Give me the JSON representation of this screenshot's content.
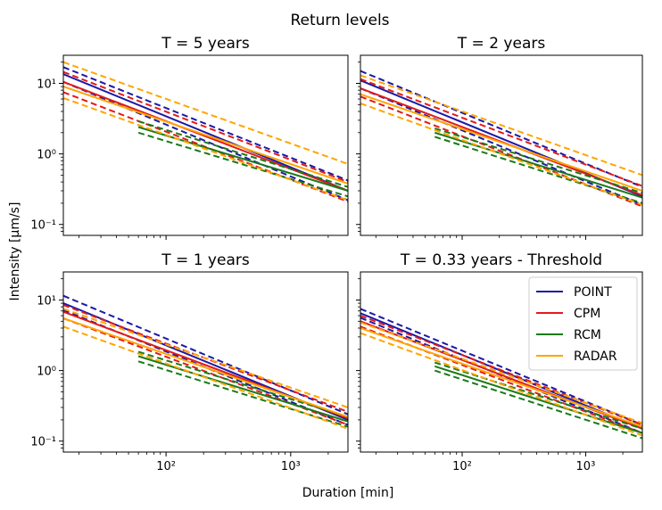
{
  "figure": {
    "suptitle": "Return levels",
    "xlabel": "Duration [min]",
    "ylabel": "Intensity [μm/s]"
  },
  "legend": {
    "placement": "top-right of bottom-right panel",
    "entries": [
      {
        "name": "POINT",
        "color": "#1a1aa6"
      },
      {
        "name": "CPM",
        "color": "#e31a1c"
      },
      {
        "name": "RCM",
        "color": "#1a7a1a"
      },
      {
        "name": "RADAR",
        "color": "#ffa500"
      }
    ]
  },
  "chart_data": [
    {
      "type": "line",
      "title": "T = 5 years",
      "x_scale": "log",
      "y_scale": "log",
      "xlim": [
        15,
        2880
      ],
      "ylim": [
        0.07,
        25
      ],
      "xticks": [
        {
          "value": 100,
          "label": "10²"
        },
        {
          "value": 1000,
          "label": "10³"
        }
      ],
      "yticks": [
        {
          "value": 0.1,
          "label": "10⁻¹"
        },
        {
          "value": 1,
          "label": "10⁰"
        },
        {
          "value": 10,
          "label": "10¹"
        }
      ],
      "series": [
        {
          "name": "POINT",
          "color": "#1a1aa6",
          "style": "solid",
          "x": [
            15,
            2880
          ],
          "y": [
            13.5,
            0.3
          ]
        },
        {
          "style": "dashed",
          "color": "#1a1aa6",
          "x": [
            15,
            2880
          ],
          "y": [
            17,
            0.42
          ]
        },
        {
          "style": "dashed",
          "color": "#1a1aa6",
          "x": [
            15,
            2880
          ],
          "y": [
            10.5,
            0.22
          ]
        },
        {
          "name": "CPM",
          "color": "#e31a1c",
          "style": "solid",
          "x": [
            15,
            2880
          ],
          "y": [
            10.5,
            0.3
          ]
        },
        {
          "style": "dashed",
          "color": "#e31a1c",
          "x": [
            15,
            2880
          ],
          "y": [
            14.5,
            0.4
          ]
        },
        {
          "style": "dashed",
          "color": "#e31a1c",
          "x": [
            15,
            2880
          ],
          "y": [
            7.5,
            0.21
          ]
        },
        {
          "name": "RCM",
          "color": "#1a7a1a",
          "style": "solid",
          "x": [
            60,
            2880
          ],
          "y": [
            2.4,
            0.3
          ]
        },
        {
          "style": "dashed",
          "color": "#1a7a1a",
          "x": [
            60,
            2880
          ],
          "y": [
            2.9,
            0.34
          ]
        },
        {
          "style": "dashed",
          "color": "#1a7a1a",
          "x": [
            60,
            2880
          ],
          "y": [
            2.0,
            0.25
          ]
        },
        {
          "name": "RADAR",
          "color": "#ffa500",
          "style": "solid",
          "x": [
            15,
            2880
          ],
          "y": [
            9,
            0.38
          ]
        },
        {
          "style": "dashed",
          "color": "#ffa500",
          "x": [
            15,
            2880
          ],
          "y": [
            20,
            0.72
          ]
        },
        {
          "style": "dashed",
          "color": "#ffa500",
          "x": [
            15,
            2880
          ],
          "y": [
            6.2,
            0.22
          ]
        }
      ]
    },
    {
      "type": "line",
      "title": "T = 2 years",
      "x_scale": "log",
      "y_scale": "log",
      "xlim": [
        15,
        2880
      ],
      "ylim": [
        0.07,
        25
      ],
      "xticks": [
        {
          "value": 100,
          "label": "10²"
        },
        {
          "value": 1000,
          "label": "10³"
        }
      ],
      "yticks": [],
      "series": [
        {
          "name": "POINT",
          "color": "#1a1aa6",
          "style": "solid",
          "x": [
            15,
            2880
          ],
          "y": [
            11,
            0.25
          ]
        },
        {
          "style": "dashed",
          "color": "#1a1aa6",
          "x": [
            15,
            2880
          ],
          "y": [
            15,
            0.34
          ]
        },
        {
          "style": "dashed",
          "color": "#1a1aa6",
          "x": [
            15,
            2880
          ],
          "y": [
            8.5,
            0.19
          ]
        },
        {
          "name": "CPM",
          "color": "#e31a1c",
          "style": "solid",
          "x": [
            15,
            2880
          ],
          "y": [
            8.5,
            0.26
          ]
        },
        {
          "style": "dashed",
          "color": "#e31a1c",
          "x": [
            15,
            2880
          ],
          "y": [
            11.5,
            0.35
          ]
        },
        {
          "style": "dashed",
          "color": "#e31a1c",
          "x": [
            15,
            2880
          ],
          "y": [
            6.5,
            0.18
          ]
        },
        {
          "name": "RCM",
          "color": "#1a7a1a",
          "style": "solid",
          "x": [
            60,
            2880
          ],
          "y": [
            2.0,
            0.24
          ]
        },
        {
          "style": "dashed",
          "color": "#1a7a1a",
          "x": [
            60,
            2880
          ],
          "y": [
            2.3,
            0.28
          ]
        },
        {
          "style": "dashed",
          "color": "#1a7a1a",
          "x": [
            60,
            2880
          ],
          "y": [
            1.75,
            0.2
          ]
        },
        {
          "name": "RADAR",
          "color": "#ffa500",
          "style": "solid",
          "x": [
            15,
            2880
          ],
          "y": [
            7,
            0.3
          ]
        },
        {
          "style": "dashed",
          "color": "#ffa500",
          "x": [
            15,
            2880
          ],
          "y": [
            13,
            0.5
          ]
        },
        {
          "style": "dashed",
          "color": "#ffa500",
          "x": [
            15,
            2880
          ],
          "y": [
            5.2,
            0.19
          ]
        }
      ]
    },
    {
      "type": "line",
      "title": "T = 1 years",
      "x_scale": "log",
      "y_scale": "log",
      "xlim": [
        15,
        2880
      ],
      "ylim": [
        0.07,
        25
      ],
      "xticks": [
        {
          "value": 100,
          "label": "10²"
        },
        {
          "value": 1000,
          "label": "10³"
        }
      ],
      "yticks": [
        {
          "value": 0.1,
          "label": "10⁻¹"
        },
        {
          "value": 1,
          "label": "10⁰"
        },
        {
          "value": 10,
          "label": "10¹"
        }
      ],
      "series": [
        {
          "name": "POINT",
          "color": "#1a1aa6",
          "style": "solid",
          "x": [
            15,
            2880
          ],
          "y": [
            9,
            0.2
          ]
        },
        {
          "style": "dashed",
          "color": "#1a1aa6",
          "x": [
            15,
            2880
          ],
          "y": [
            11.5,
            0.24
          ]
        },
        {
          "style": "dashed",
          "color": "#1a1aa6",
          "x": [
            15,
            2880
          ],
          "y": [
            7.2,
            0.17
          ]
        },
        {
          "name": "CPM",
          "color": "#e31a1c",
          "style": "solid",
          "x": [
            15,
            2880
          ],
          "y": [
            6.8,
            0.21
          ]
        },
        {
          "style": "dashed",
          "color": "#e31a1c",
          "x": [
            15,
            2880
          ],
          "y": [
            8.5,
            0.26
          ]
        },
        {
          "style": "dashed",
          "color": "#e31a1c",
          "x": [
            15,
            2880
          ],
          "y": [
            5.5,
            0.17
          ]
        },
        {
          "name": "RCM",
          "color": "#1a7a1a",
          "style": "solid",
          "x": [
            60,
            2880
          ],
          "y": [
            1.6,
            0.19
          ]
        },
        {
          "style": "dashed",
          "color": "#1a7a1a",
          "x": [
            60,
            2880
          ],
          "y": [
            1.85,
            0.22
          ]
        },
        {
          "style": "dashed",
          "color": "#1a7a1a",
          "x": [
            60,
            2880
          ],
          "y": [
            1.35,
            0.16
          ]
        },
        {
          "name": "RADAR",
          "color": "#ffa500",
          "style": "solid",
          "x": [
            15,
            2880
          ],
          "y": [
            5.5,
            0.22
          ]
        },
        {
          "style": "dashed",
          "color": "#ffa500",
          "x": [
            15,
            2880
          ],
          "y": [
            7.5,
            0.3
          ]
        },
        {
          "style": "dashed",
          "color": "#ffa500",
          "x": [
            15,
            2880
          ],
          "y": [
            4.2,
            0.15
          ]
        }
      ]
    },
    {
      "type": "line",
      "title": "T = 0.33 years - Threshold",
      "x_scale": "log",
      "y_scale": "log",
      "xlim": [
        15,
        2880
      ],
      "ylim": [
        0.07,
        25
      ],
      "xticks": [
        {
          "value": 100,
          "label": "10²"
        },
        {
          "value": 1000,
          "label": "10³"
        }
      ],
      "yticks": [],
      "series": [
        {
          "name": "POINT",
          "color": "#1a1aa6",
          "style": "solid",
          "x": [
            15,
            2880
          ],
          "y": [
            6.5,
            0.15
          ]
        },
        {
          "style": "dashed",
          "color": "#1a1aa6",
          "x": [
            15,
            2880
          ],
          "y": [
            7.5,
            0.17
          ]
        },
        {
          "style": "dashed",
          "color": "#1a1aa6",
          "x": [
            15,
            2880
          ],
          "y": [
            5.6,
            0.13
          ]
        },
        {
          "name": "CPM",
          "color": "#e31a1c",
          "style": "solid",
          "x": [
            15,
            2880
          ],
          "y": [
            5.0,
            0.15
          ]
        },
        {
          "style": "dashed",
          "color": "#e31a1c",
          "x": [
            15,
            2880
          ],
          "y": [
            6.0,
            0.17
          ]
        },
        {
          "style": "dashed",
          "color": "#e31a1c",
          "x": [
            15,
            2880
          ],
          "y": [
            4.2,
            0.13
          ]
        },
        {
          "name": "RCM",
          "color": "#1a7a1a",
          "style": "solid",
          "x": [
            60,
            2880
          ],
          "y": [
            1.15,
            0.13
          ]
        },
        {
          "style": "dashed",
          "color": "#1a7a1a",
          "x": [
            60,
            2880
          ],
          "y": [
            1.3,
            0.15
          ]
        },
        {
          "style": "dashed",
          "color": "#1a7a1a",
          "x": [
            60,
            2880
          ],
          "y": [
            1.0,
            0.11
          ]
        },
        {
          "name": "RADAR",
          "color": "#ffa500",
          "style": "solid",
          "x": [
            15,
            2880
          ],
          "y": [
            4.0,
            0.16
          ]
        },
        {
          "style": "dashed",
          "color": "#ffa500",
          "x": [
            15,
            2880
          ],
          "y": [
            4.8,
            0.18
          ]
        },
        {
          "style": "dashed",
          "color": "#ffa500",
          "x": [
            15,
            2880
          ],
          "y": [
            3.4,
            0.12
          ]
        }
      ]
    }
  ]
}
